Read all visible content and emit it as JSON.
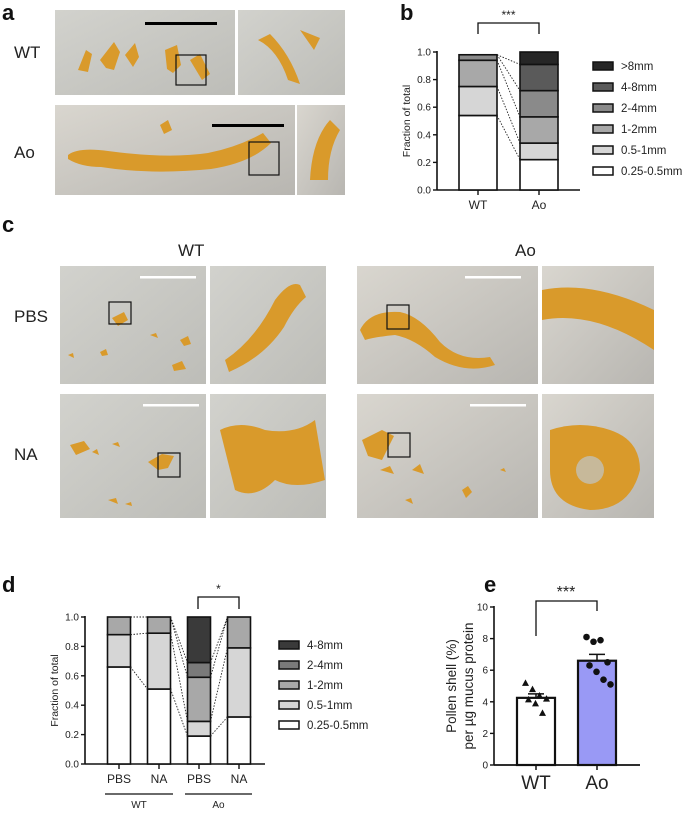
{
  "panels": {
    "a": {
      "label": "a",
      "rows": [
        "WT",
        "Ao"
      ]
    },
    "b": {
      "label": "b"
    },
    "c": {
      "label": "c",
      "columns": [
        "WT",
        "Ao"
      ],
      "rows": [
        "PBS",
        "NA"
      ]
    },
    "d": {
      "label": "d"
    },
    "e": {
      "label": "e"
    }
  },
  "colors": {
    "photo_bg": "#c9c9c4",
    "mucus": "#d99a2b",
    "bar_ao_e": "#9999f5",
    "seg_0.25-0.5mm": "#ffffff",
    "seg_0.5-1mm": "#d6d6d6",
    "seg_1-2mm": "#a8a8a8",
    "seg_2-4mm": "#8a8a8a",
    "seg_4-8mm": "#5a5a5a",
    "seg_>8mm": "#262626"
  },
  "chart_data": [
    {
      "panel": "b",
      "type": "bar",
      "stacked": true,
      "categories": [
        "WT",
        "Ao"
      ],
      "ylabel": "Fraction of total",
      "ylim": [
        0,
        1.0
      ],
      "yticks": [
        "0.0",
        "0.2",
        "0.4",
        "0.6",
        "0.8",
        "1.0"
      ],
      "legend_position": "right",
      "significance": "***",
      "series": [
        {
          "name": "0.25-0.5mm",
          "color": "#ffffff",
          "values": [
            0.54,
            0.22
          ]
        },
        {
          "name": "0.5-1mm",
          "color": "#d6d6d6",
          "values": [
            0.21,
            0.12
          ]
        },
        {
          "name": "1-2mm",
          "color": "#a8a8a8",
          "values": [
            0.19,
            0.19
          ]
        },
        {
          "name": "2-4mm",
          "color": "#8a8a8a",
          "values": [
            0.04,
            0.19
          ]
        },
        {
          "name": "4-8mm",
          "color": "#5a5a5a",
          "values": [
            0.0,
            0.19
          ]
        },
        {
          "name": ">8mm",
          "color": "#262626",
          "values": [
            0.0,
            0.09
          ]
        }
      ]
    },
    {
      "panel": "d",
      "type": "bar",
      "stacked": true,
      "categories": [
        "PBS",
        "NA",
        "PBS",
        "NA"
      ],
      "groups": [
        "WT",
        "Ao"
      ],
      "ylabel": "Fraction of total",
      "ylim": [
        0,
        1.0
      ],
      "yticks": [
        "0.0",
        "0.2",
        "0.4",
        "0.6",
        "0.8",
        "1.0"
      ],
      "legend_position": "right",
      "significance": "*",
      "series": [
        {
          "name": "0.25-0.5mm",
          "color": "#ffffff",
          "values": [
            0.66,
            0.51,
            0.19,
            0.32
          ]
        },
        {
          "name": "0.5-1mm",
          "color": "#d6d6d6",
          "values": [
            0.22,
            0.38,
            0.1,
            0.47
          ]
        },
        {
          "name": "1-2mm",
          "color": "#a8a8a8",
          "values": [
            0.12,
            0.11,
            0.3,
            0.21
          ]
        },
        {
          "name": "2-4mm",
          "color": "#7a7a7a",
          "values": [
            0.0,
            0.0,
            0.1,
            0.0
          ]
        },
        {
          "name": "4-8mm",
          "color": "#3a3a3a",
          "values": [
            0.0,
            0.0,
            0.31,
            0.0
          ]
        }
      ]
    },
    {
      "panel": "e",
      "type": "bar",
      "categories": [
        "WT",
        "Ao"
      ],
      "ylabel": "Pollen shell (%)\nper µg mucus protein",
      "ylabel_lines": [
        "Pollen shell (%)",
        "per µg mucus protein"
      ],
      "ylim": [
        0,
        10
      ],
      "yticks": [
        "0",
        "2",
        "4",
        "6",
        "8",
        "10"
      ],
      "significance": "***",
      "means": [
        4.25,
        6.6
      ],
      "sem": [
        0.25,
        0.4
      ],
      "bar_colors": [
        "#ffffff",
        "#9999f5"
      ],
      "points": [
        [
          5.2,
          4.8,
          4.4,
          4.2,
          4.15,
          3.9,
          3.3
        ],
        [
          8.1,
          7.8,
          7.9,
          6.5,
          6.3,
          5.9,
          5.4,
          5.1
        ]
      ],
      "markers": [
        "triangle",
        "circle"
      ]
    }
  ]
}
